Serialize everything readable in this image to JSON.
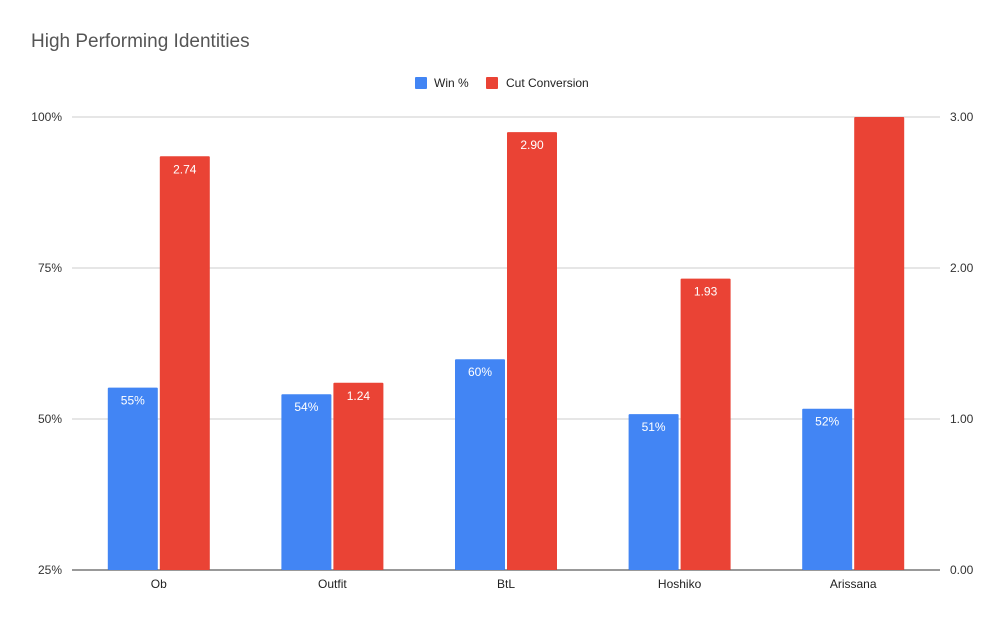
{
  "chart_data": {
    "type": "bar",
    "title": "High Performing Identities",
    "categories": [
      "Ob",
      "Outfit",
      "BtL",
      "Hoshiko",
      "Arissana"
    ],
    "series": [
      {
        "name": "Win %",
        "axis": "left",
        "color": "#4285f4",
        "values": [
          55.2,
          54.1,
          59.9,
          50.8,
          51.7
        ],
        "labels": [
          "55%",
          "54%",
          "60%",
          "51%",
          "52%"
        ]
      },
      {
        "name": "Cut Conversion",
        "axis": "right",
        "color": "#ea4335",
        "values": [
          2.74,
          1.24,
          2.9,
          1.93,
          3.0
        ],
        "labels": [
          "2.74",
          "1.24",
          "2.90",
          "1.93",
          ""
        ]
      }
    ],
    "left_axis": {
      "min": 25,
      "max": 100,
      "ticks": [
        "100%",
        "75%",
        "50%",
        "25%"
      ]
    },
    "right_axis": {
      "min": 0,
      "max": 3,
      "ticks": [
        "3.00",
        "2.00",
        "1.00",
        "0.00"
      ]
    },
    "grid": true,
    "legend_position": "top"
  }
}
